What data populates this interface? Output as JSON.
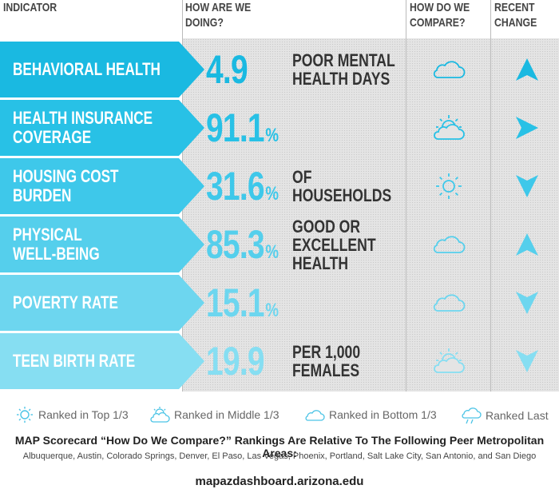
{
  "header": {
    "indicator": "INDICATOR",
    "doing": "HOW ARE WE DOING?",
    "compare": "HOW DO WE COMPARE?",
    "change": "RECENT CHANGE"
  },
  "colors": {
    "rows": [
      "#1ab9e1",
      "#28c1e6",
      "#3ec8ea",
      "#55cfec",
      "#6dd6ef",
      "#86def2"
    ]
  },
  "rows": [
    {
      "label": "BEHAVIORAL HEALTH",
      "value": "4.9",
      "unit": "",
      "desc": "POOR MENTAL\nHEALTH DAYS",
      "compare_icon": "cloud-icon",
      "change_icon": "arrow-up-icon"
    },
    {
      "label": "HEALTH INSURANCE\nCOVERAGE",
      "value": "91.1",
      "unit": "%",
      "desc": "",
      "compare_icon": "partly-cloudy-icon",
      "change_icon": "arrow-right-icon"
    },
    {
      "label": "HOUSING COST\nBURDEN",
      "value": "31.6",
      "unit": "%",
      "desc": "OF\nHOUSEHOLDS",
      "compare_icon": "sun-icon",
      "change_icon": "arrow-down-icon"
    },
    {
      "label": "PHYSICAL\nWELL-BEING",
      "value": "85.3",
      "unit": "%",
      "desc": "GOOD OR\nEXCELLENT\nHEALTH",
      "compare_icon": "cloud-icon",
      "change_icon": "arrow-up-icon"
    },
    {
      "label": "POVERTY RATE",
      "value": "15.1",
      "unit": "%",
      "desc": "",
      "compare_icon": "cloud-icon",
      "change_icon": "arrow-down-icon"
    },
    {
      "label": "TEEN BIRTH RATE",
      "value": "19.9",
      "unit": "",
      "desc": "PER 1,000\nFEMALES",
      "compare_icon": "partly-cloudy-icon",
      "change_icon": "arrow-down-icon"
    }
  ],
  "legend": {
    "top": "Ranked in Top 1/3",
    "middle": "Ranked in Middle 1/3",
    "bottom": "Ranked in Bottom 1/3",
    "last": "Ranked Last"
  },
  "footer": {
    "title": "MAP Scorecard “How Do We Compare?” Rankings Are Relative To The Following Peer Metropolitan Areas:",
    "cities": "Albuquerque, Austin, Colorado Springs, Denver, El Paso, Las Vegas, Phoenix, Portland, Salt Lake City, San Antonio, and San Diego",
    "url": "mapazdashboard.arizona.edu"
  }
}
